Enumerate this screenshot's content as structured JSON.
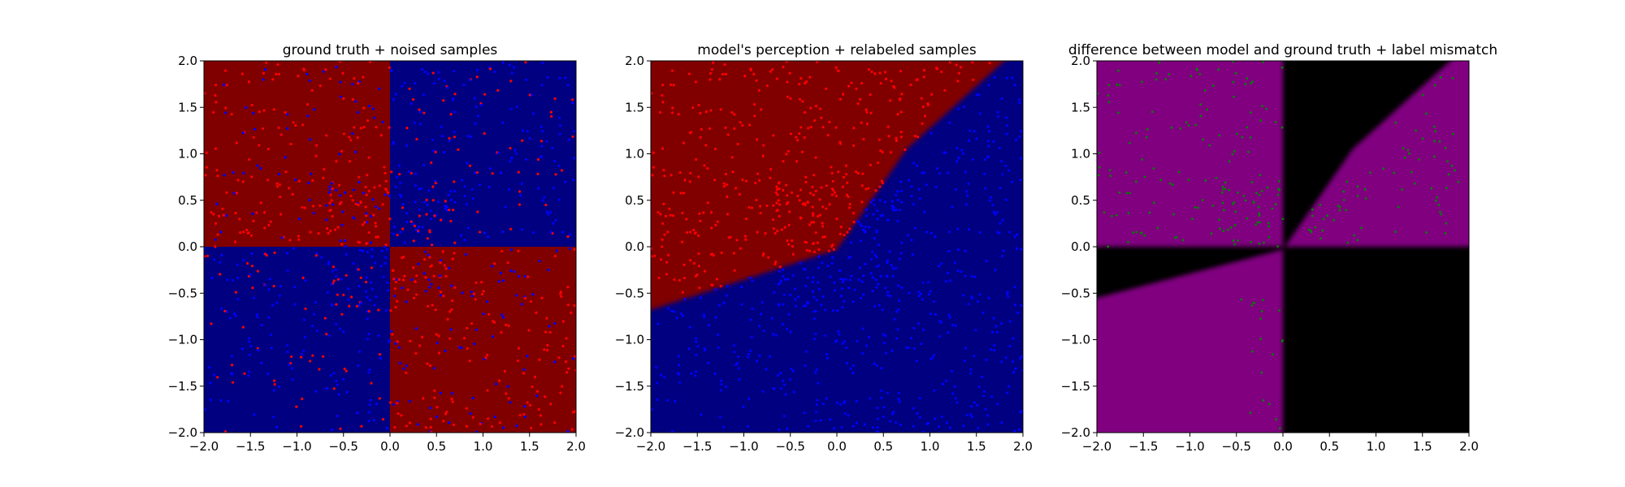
{
  "figure": {
    "titles": [
      "ground truth + noised samples",
      "model's perception + relabeled samples",
      "difference between model and ground truth + label mismatch"
    ],
    "x_ticks": [
      "−2.0",
      "−1.5",
      "−1.0",
      "−0.5",
      "0.0",
      "0.5",
      "1.0",
      "1.5",
      "2.0"
    ],
    "y_ticks": [
      "2.0",
      "1.5",
      "1.0",
      "0.5",
      "0.0",
      "−0.5",
      "−1.0",
      "−1.5",
      "−2.0"
    ]
  },
  "chart_data": [
    {
      "type": "scatter",
      "title": "ground truth + noised samples",
      "xlim": [
        -2,
        2
      ],
      "ylim": [
        -2,
        2
      ],
      "x_ticks": [
        -2.0,
        -1.5,
        -1.0,
        -0.5,
        0.0,
        0.5,
        1.0,
        1.5,
        2.0
      ],
      "y_ticks": [
        -2.0,
        -1.5,
        -1.0,
        -0.5,
        0.0,
        0.5,
        1.0,
        1.5,
        2.0
      ],
      "grid": false,
      "background": {
        "kind": "quadrant-classes",
        "regions": [
          {
            "quadrant": "x<0, y>0",
            "color": "#800000"
          },
          {
            "quadrant": "x>0, y>0",
            "color": "#000080"
          },
          {
            "quadrant": "x<0, y<0",
            "color": "#000080"
          },
          {
            "quadrant": "x>0, y<0",
            "color": "#800000"
          }
        ]
      },
      "points": {
        "colors": [
          "#ff0000",
          "#0000ff"
        ],
        "count_approx": 1000,
        "distribution": "uniform over [-2,2]x[-2,2], labels noisy, denser near origin"
      }
    },
    {
      "type": "scatter",
      "title": "model's perception + relabeled samples",
      "xlim": [
        -2,
        2
      ],
      "ylim": [
        -2,
        2
      ],
      "x_ticks": [
        -2.0,
        -1.5,
        -1.0,
        -0.5,
        0.0,
        0.5,
        1.0,
        1.5,
        2.0
      ],
      "y_ticks": [
        -2.0,
        -1.5,
        -1.0,
        -0.5,
        0.0,
        0.5,
        1.0,
        1.5,
        2.0
      ],
      "grid": false,
      "background": {
        "kind": "decision-boundary",
        "above_color": "#800000",
        "below_color": "#000080",
        "boundary": [
          [
            -2.0,
            -0.68
          ],
          [
            0.0,
            -0.03
          ],
          [
            0.75,
            1.05
          ],
          [
            1.8,
            2.0
          ]
        ]
      },
      "points": {
        "colors": [
          "#ff0000",
          "#0000ff"
        ],
        "count_approx": 1000,
        "rule": "red above boundary, blue below"
      }
    },
    {
      "type": "scatter",
      "title": "difference between model and ground truth + label mismatch",
      "xlim": [
        -2,
        2
      ],
      "ylim": [
        -2,
        2
      ],
      "x_ticks": [
        -2.0,
        -1.5,
        -1.0,
        -0.5,
        0.0,
        0.5,
        1.0,
        1.5,
        2.0
      ],
      "y_ticks": [
        -2.0,
        -1.5,
        -1.0,
        -0.5,
        0.0,
        0.5,
        1.0,
        1.5,
        2.0
      ],
      "grid": false,
      "background": {
        "kind": "mismatch-map",
        "mismatch_color": "#800080",
        "match_color": "#000000"
      },
      "points": {
        "color": "#008000",
        "count_approx": 450,
        "rule": "samples where model label differs from ground truth"
      }
    }
  ]
}
